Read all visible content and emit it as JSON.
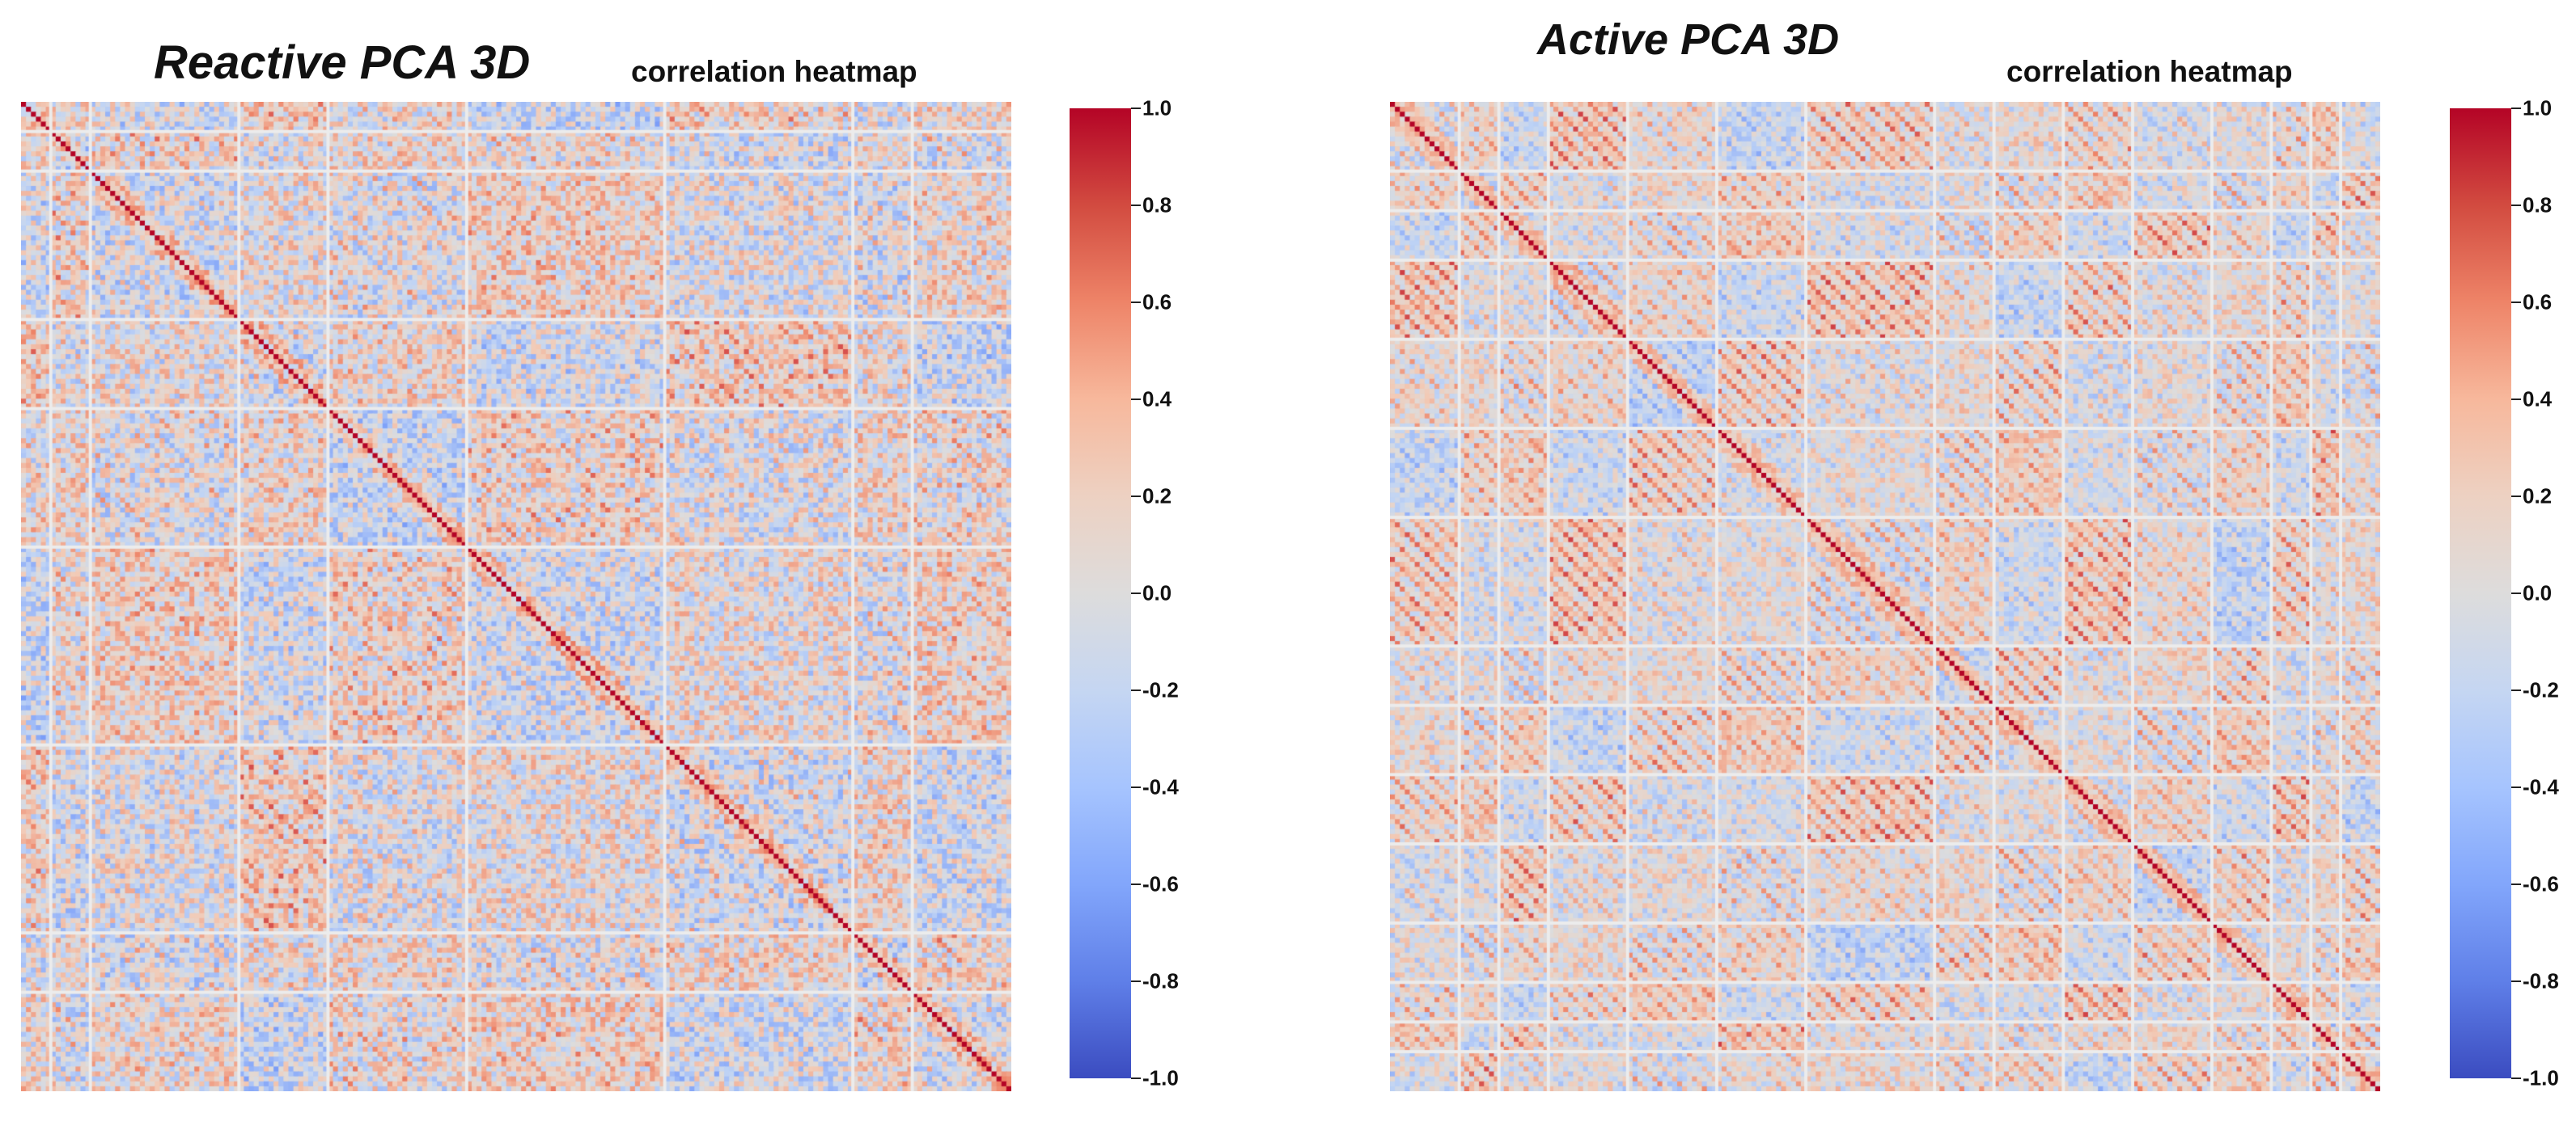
{
  "chart_data": [
    {
      "type": "heatmap",
      "title": "Reactive PCA 3D",
      "subtitle": "correlation heatmap",
      "colormap": "coolwarm",
      "colorbar_range": [
        -1.0,
        1.0
      ],
      "colorbar_ticks": [
        "1.0",
        "0.8",
        "0.6",
        "0.4",
        "0.2",
        "0.0",
        "-0.2",
        "-0.4",
        "-0.6",
        "-0.8",
        "-1.0"
      ],
      "matrix_size": 200,
      "block_boundaries": [
        6,
        14,
        44,
        62,
        90,
        130,
        168,
        180
      ],
      "diagonal_value": 1.0,
      "axis_tick_labels_legible": false
    },
    {
      "type": "heatmap",
      "title": "Active PCA 3D",
      "subtitle": "correlation heatmap",
      "colormap": "coolwarm",
      "colorbar_range": [
        -1.0,
        1.0
      ],
      "colorbar_ticks": [
        "1.0",
        "0.8",
        "0.6",
        "0.4",
        "0.2",
        "0.0",
        "-0.2",
        "-0.4",
        "-0.6",
        "-0.8",
        "-1.0"
      ],
      "matrix_size": 200,
      "block_boundaries": [
        14,
        22,
        32,
        48,
        66,
        84,
        110,
        122,
        136,
        150,
        166,
        178,
        186,
        192
      ],
      "diagonal_value": 1.0,
      "axis_tick_labels_legible": false
    }
  ],
  "colors": {
    "neg_end": "#3b4cc0",
    "neutral": "#dddcdc",
    "pos_end": "#b40426",
    "block_separator": "#ececec"
  }
}
